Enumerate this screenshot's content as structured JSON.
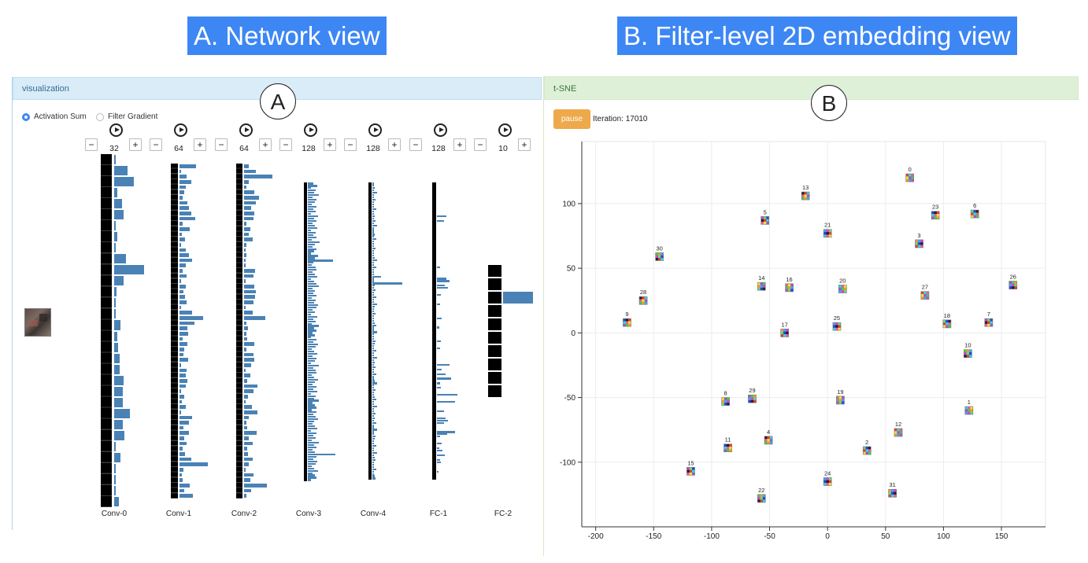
{
  "banners": {
    "network": "A. Network view",
    "embedding": "B. Filter-level 2D embedding view"
  },
  "left_panel": {
    "title": "visualization",
    "marker": "A",
    "options": [
      {
        "label": "Activation Sum",
        "selected": true
      },
      {
        "label": "Filter Gradient",
        "selected": false
      }
    ],
    "layers": [
      {
        "name": "Conv-0",
        "count": "32",
        "n": 32,
        "thumbs": true,
        "bars": [
          0.05,
          0.38,
          0.55,
          0.08,
          0.22,
          0.26,
          0.05,
          0.08,
          0.04,
          0.33,
          0.84,
          0.26,
          0.06,
          0.05,
          0.04,
          0.17,
          0.09,
          0.12,
          0.16,
          0.15,
          0.26,
          0.24,
          0.24,
          0.45,
          0.25,
          0.28,
          0.04,
          0.18,
          0.03,
          0.05,
          0.04,
          0.13
        ]
      },
      {
        "name": "Conv-1",
        "count": "64",
        "n": 64,
        "thumbs": true,
        "bars": [
          0.5,
          0.05,
          0.22,
          0.36,
          0.18,
          0.15,
          0.1,
          0.24,
          0.28,
          0.35,
          0.48,
          0.1,
          0.32,
          0.06,
          0.16,
          0.05,
          0.18,
          0.28,
          0.38,
          0.2,
          0.1,
          0.22,
          0.05,
          0.2,
          0.13,
          0.16,
          0.22,
          0.02,
          0.38,
          0.72,
          0.45,
          0.24,
          0.25,
          0.1,
          0.24,
          0.15,
          0.12,
          0.25,
          0.04,
          0.22,
          0.18,
          0.23,
          0.19,
          0.03,
          0.15,
          0.06,
          0.2,
          0.05,
          0.38,
          0.28,
          0.12,
          0.28,
          0.14,
          0.22,
          0.09,
          0.16,
          0.35,
          0.86,
          0.11,
          0.08,
          0.1,
          0.3,
          0.15,
          0.4
        ]
      },
      {
        "name": "Conv-2",
        "count": "64",
        "n": 64,
        "thumbs": true,
        "bars": [
          0.15,
          0.35,
          0.85,
          0.15,
          0.08,
          0.32,
          0.45,
          0.35,
          0.22,
          0.32,
          0.28,
          0.08,
          0.18,
          0.15,
          0.26,
          0.08,
          0.05,
          0.08,
          0.05,
          0.05,
          0.34,
          0.28,
          0.05,
          0.32,
          0.35,
          0.34,
          0.28,
          0.04,
          0.27,
          0.65,
          0.06,
          0.11,
          0.07,
          0.09,
          0.3,
          0.08,
          0.29,
          0.3,
          0.22,
          0.05,
          0.2,
          0.1,
          0.4,
          0.28,
          0.12,
          0.05,
          0.24,
          0.4,
          0.14,
          0.08,
          0.1,
          0.38,
          0.15,
          0.25,
          0.09,
          0.12,
          0.26,
          0.15,
          0.05,
          0.28,
          0.2,
          0.68,
          0.22,
          0.08
        ]
      },
      {
        "name": "Conv-3",
        "count": "128",
        "n": 128,
        "thumbs": true,
        "bars": [
          0.2,
          0.35,
          0.12,
          0.28,
          0.22,
          0.4,
          0.18,
          0.3,
          0.25,
          0.15,
          0.32,
          0.2,
          0.28,
          0.1,
          0.38,
          0.22,
          0.3,
          0.18,
          0.25,
          0.35,
          0.12,
          0.28,
          0.2,
          0.32,
          0.15,
          0.42,
          0.25,
          0.18,
          0.3,
          0.22,
          0.1,
          0.38,
          0.25,
          0.9,
          0.2,
          0.15,
          0.28,
          0.32,
          0.18,
          0.25,
          0.35,
          0.12,
          0.22,
          0.3,
          0.4,
          0.18,
          0.25,
          0.2,
          0.32,
          0.15,
          0.28,
          0.22,
          0.38,
          0.3,
          0.18,
          0.25,
          0.12,
          0.35,
          0.2,
          0.28,
          0.15,
          0.4,
          0.22,
          0.3,
          0.18,
          0.25,
          0.1,
          0.32,
          0.2,
          0.38,
          0.28,
          0.15,
          0.22,
          0.35,
          0.18,
          0.3,
          0.25,
          0.12,
          0.4,
          0.2,
          0.28,
          0.32,
          0.15,
          0.22,
          0.38,
          0.25,
          0.18,
          0.3,
          0.2,
          0.35,
          0.12,
          0.28,
          0.22,
          0.4,
          0.18,
          0.25,
          0.3,
          0.15,
          0.32,
          0.2,
          0.28,
          0.38,
          0.22,
          0.18,
          0.25,
          0.35,
          0.12,
          0.3,
          0.2,
          0.28,
          0.15,
          0.4,
          0.22,
          0.32,
          0.18,
          0.25,
          1.1,
          0.3,
          0.2,
          0.35,
          0.28,
          0.15,
          0.22,
          0.38,
          0.18,
          0.25,
          0.3,
          0.12
        ]
      },
      {
        "name": "Conv-4",
        "count": "128",
        "n": 128,
        "thumbs": true,
        "bars": [
          0.05,
          0.02,
          0.08,
          0.03,
          0.15,
          0.05,
          0.02,
          0.1,
          0.04,
          0.06,
          0.02,
          0.12,
          0.03,
          0.05,
          0.08,
          0.02,
          0.1,
          0.04,
          0.15,
          0.03,
          0.06,
          0.02,
          0.08,
          0.05,
          0.12,
          0.03,
          0.04,
          0.02,
          0.1,
          0.06,
          0.05,
          0.03,
          0.08,
          0.15,
          0.02,
          0.04,
          0.12,
          0.05,
          0.06,
          0.03,
          0.28,
          0.05,
          0.03,
          1.0,
          0.08,
          0.04,
          0.1,
          0.02,
          0.06,
          0.12,
          0.05,
          0.03,
          0.15,
          0.08,
          0.04,
          0.02,
          0.1,
          0.05,
          0.06,
          0.03,
          0.08,
          0.12,
          0.02,
          0.04,
          0.15,
          0.05,
          0.03,
          0.06,
          0.1,
          0.08,
          0.02,
          0.04,
          0.12,
          0.05,
          0.03,
          0.15,
          0.06,
          0.08,
          0.02,
          0.1,
          0.04,
          0.05,
          0.12,
          0.03,
          0.06,
          0.08,
          0.15,
          0.02,
          0.04,
          0.1,
          0.05,
          0.03,
          0.08,
          0.12,
          0.06,
          0.02,
          0.15,
          0.04,
          0.05,
          0.1,
          0.03,
          0.08,
          0.06,
          0.12,
          0.02,
          0.04,
          0.15,
          0.05,
          0.03,
          0.1,
          0.08,
          0.06,
          0.02,
          0.12,
          0.04,
          0.05,
          0.15,
          0.03,
          0.08,
          0.1,
          0.06,
          0.02,
          0.04,
          0.12,
          0.05,
          0.03,
          0.08,
          0.1
        ]
      },
      {
        "name": "FC-1",
        "count": "128",
        "n": 128,
        "thumbs": false,
        "bars": [
          0,
          0,
          0,
          0,
          0,
          0,
          0,
          0,
          0,
          0,
          0,
          0,
          0,
          0,
          0.35,
          0,
          0.25,
          0,
          0,
          0,
          0,
          0,
          0,
          0,
          0,
          0,
          0,
          0,
          0,
          0,
          0,
          0,
          0,
          0,
          0,
          0,
          0.1,
          0,
          0,
          0,
          0,
          0.35,
          0.45,
          0,
          0.28,
          0.4,
          0,
          0,
          0.15,
          0,
          0,
          0,
          0.1,
          0,
          0,
          0,
          0,
          0,
          0.18,
          0,
          0,
          0,
          0.08,
          0,
          0,
          0,
          0,
          0,
          0.15,
          0,
          0,
          0.12,
          0,
          0,
          0,
          0,
          0,
          0,
          0.45,
          0,
          0.18,
          0,
          0.3,
          0,
          0.52,
          0,
          0.1,
          0,
          0.15,
          0,
          0,
          0.75,
          0,
          0,
          0.65,
          0,
          0,
          0,
          0.25,
          0,
          0,
          0.32,
          0.4,
          0.25,
          0,
          0,
          0,
          0.65,
          0.38,
          0.1,
          0,
          0,
          0.18,
          0,
          0.08,
          0.2,
          0,
          0.28,
          0,
          0.12,
          0.15,
          0,
          0,
          0,
          0.05,
          0,
          0,
          0,
          0,
          0
        ]
      },
      {
        "name": "FC-2",
        "count": "10",
        "n": 10,
        "thumbs": false,
        "bars": [
          0,
          0,
          1.0,
          0,
          0,
          0,
          0,
          0,
          0,
          0
        ]
      }
    ]
  },
  "right_panel": {
    "title": "t-SNE",
    "marker": "B",
    "pause_label": "pause",
    "iteration_text": "Iteration: 17010"
  },
  "chart_data": {
    "type": "scatter",
    "title": "",
    "xlabel": "",
    "ylabel": "",
    "xlim": [
      -212,
      188
    ],
    "ylim": [
      -150,
      148
    ],
    "xticks": [
      -200,
      -150,
      -100,
      -50,
      0,
      50,
      100,
      150
    ],
    "yticks": [
      100,
      50,
      0,
      -50,
      -100
    ],
    "grid": true,
    "points": [
      {
        "label": "0",
        "x": 71,
        "y": 120
      },
      {
        "label": "13",
        "x": -19,
        "y": 106
      },
      {
        "label": "23",
        "x": 93,
        "y": 91
      },
      {
        "label": "6",
        "x": 127,
        "y": 92
      },
      {
        "label": "5",
        "x": -54,
        "y": 87
      },
      {
        "label": "21",
        "x": 0,
        "y": 77
      },
      {
        "label": "3",
        "x": 79,
        "y": 69
      },
      {
        "label": "30",
        "x": -145,
        "y": 59
      },
      {
        "label": "26",
        "x": 160,
        "y": 37
      },
      {
        "label": "14",
        "x": -57,
        "y": 36
      },
      {
        "label": "16",
        "x": -33,
        "y": 35
      },
      {
        "label": "20",
        "x": 13,
        "y": 34
      },
      {
        "label": "27",
        "x": 84,
        "y": 29
      },
      {
        "label": "28",
        "x": -159,
        "y": 25
      },
      {
        "label": "9",
        "x": -173,
        "y": 8
      },
      {
        "label": "18",
        "x": 103,
        "y": 7
      },
      {
        "label": "7",
        "x": 139,
        "y": 8
      },
      {
        "label": "25",
        "x": 8,
        "y": 5
      },
      {
        "label": "17",
        "x": -37,
        "y": 0
      },
      {
        "label": "10",
        "x": 121,
        "y": -16
      },
      {
        "label": "29",
        "x": -65,
        "y": -51
      },
      {
        "label": "8",
        "x": -88,
        "y": -53
      },
      {
        "label": "19",
        "x": 11,
        "y": -52
      },
      {
        "label": "1",
        "x": 122,
        "y": -60
      },
      {
        "label": "12",
        "x": 61,
        "y": -77
      },
      {
        "label": "4",
        "x": -51,
        "y": -83
      },
      {
        "label": "11",
        "x": -86,
        "y": -89
      },
      {
        "label": "2",
        "x": 34,
        "y": -91
      },
      {
        "label": "15",
        "x": -118,
        "y": -107
      },
      {
        "label": "24",
        "x": 0,
        "y": -115
      },
      {
        "label": "31",
        "x": 56,
        "y": -124
      },
      {
        "label": "22",
        "x": -57,
        "y": -128
      }
    ]
  },
  "colors": {
    "accent": "#3d87f5",
    "bar": "#4a82b5",
    "left_header_bg": "#d9ecf7",
    "right_header_bg": "#dff0d8",
    "pause_button": "#eea94a"
  },
  "icons": {
    "play": "play-circle-icon",
    "minus": "minus-icon",
    "plus": "plus-icon"
  }
}
